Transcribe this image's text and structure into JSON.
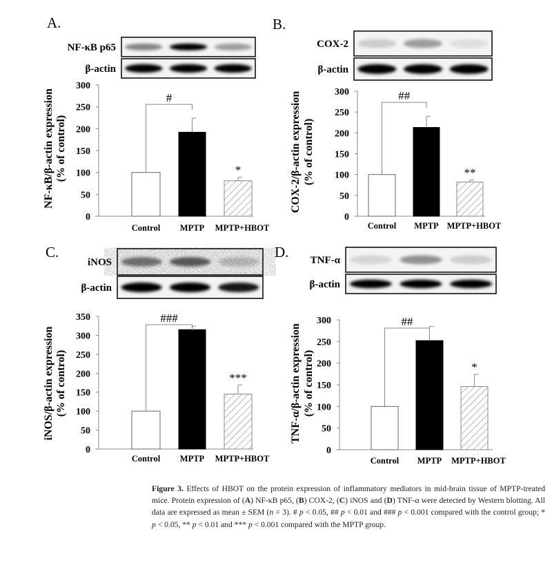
{
  "chart_data": [
    {
      "type": "bar",
      "panel_label": "A.",
      "blot_labels": [
        "NF-κB p65",
        "β-actin"
      ],
      "ylabel": [
        "NF-κB/β-actin expression",
        "(% of control)"
      ],
      "categories": [
        "Control",
        "MPTP",
        "MPTP+HBOT"
      ],
      "values": [
        100,
        192,
        81
      ],
      "errors": [
        0,
        32,
        8
      ],
      "yticks": [
        0,
        50,
        100,
        150,
        200,
        250,
        300
      ],
      "ylim": [
        0,
        300
      ],
      "bracket_label": "#",
      "significance": [
        "",
        "",
        "*"
      ]
    },
    {
      "type": "bar",
      "panel_label": "B.",
      "blot_labels": [
        "COX-2",
        "β-actin"
      ],
      "ylabel": [
        "COX-2/β-actin expression",
        "(% of control)"
      ],
      "categories": [
        "Control",
        "MPTP",
        "MPTP+HBOT"
      ],
      "values": [
        100,
        213,
        82
      ],
      "errors": [
        0,
        27,
        5
      ],
      "yticks": [
        0,
        50,
        100,
        150,
        200,
        250,
        300
      ],
      "ylim": [
        0,
        300
      ],
      "bracket_label": "##",
      "significance": [
        "",
        "",
        "**"
      ]
    },
    {
      "type": "bar",
      "panel_label": "C.",
      "blot_labels": [
        "iNOS",
        "β-actin"
      ],
      "ylabel": [
        "iNOS/β-actin expression",
        "(% of control)"
      ],
      "categories": [
        "Control",
        "MPTP",
        "MPTP+HBOT"
      ],
      "values": [
        100,
        315,
        145
      ],
      "errors": [
        0,
        9,
        24
      ],
      "yticks": [
        0,
        50,
        100,
        150,
        200,
        250,
        300,
        350
      ],
      "ylim": [
        0,
        350
      ],
      "bracket_label": "###",
      "significance": [
        "",
        "",
        "***"
      ]
    },
    {
      "type": "bar",
      "panel_label": "D.",
      "blot_labels": [
        "TNF-α",
        "β-actin"
      ],
      "ylabel": [
        "TNF-α/β-actin expression",
        "(% of control)"
      ],
      "categories": [
        "Control",
        "MPTP",
        "MPTP+HBOT"
      ],
      "values": [
        100,
        252,
        146
      ],
      "errors": [
        0,
        33,
        28
      ],
      "yticks": [
        0,
        50,
        100,
        150,
        200,
        250,
        300
      ],
      "ylim": [
        0,
        300
      ],
      "bracket_label": "##",
      "significance": [
        "",
        "",
        "*"
      ]
    }
  ],
  "caption": [
    {
      "text": "Figure 3.",
      "style": "b"
    },
    {
      "text": " Effects of HBOT on the protein expression of inflammatory mediators in mid-brain tissue of MPTP-treated mice. Protein expression of (",
      "style": ""
    },
    {
      "text": "A",
      "style": "b"
    },
    {
      "text": ") NF-κB p65, (",
      "style": ""
    },
    {
      "text": "B",
      "style": "b"
    },
    {
      "text": ") COX-2, (",
      "style": ""
    },
    {
      "text": "C",
      "style": "b"
    },
    {
      "text": ") iNOS and (",
      "style": ""
    },
    {
      "text": "D",
      "style": "b"
    },
    {
      "text": ") TNF-α were detected by Western blotting. All data are expressed as mean ± SEM (",
      "style": ""
    },
    {
      "text": "n",
      "style": "i"
    },
    {
      "text": " = 3). # ",
      "style": ""
    },
    {
      "text": "p",
      "style": "i"
    },
    {
      "text": " < 0.05, ## ",
      "style": ""
    },
    {
      "text": "p",
      "style": "i"
    },
    {
      "text": " < 0.01 and ### ",
      "style": ""
    },
    {
      "text": "p",
      "style": "i"
    },
    {
      "text": " < 0.001 compared with the control group; * ",
      "style": ""
    },
    {
      "text": "p",
      "style": "i"
    },
    {
      "text": " < 0.05, ** ",
      "style": ""
    },
    {
      "text": "p",
      "style": "i"
    },
    {
      "text": " < 0.01 and *** ",
      "style": ""
    },
    {
      "text": "p",
      "style": "i"
    },
    {
      "text": " < 0.001 compared with the MPTP group.",
      "style": ""
    }
  ]
}
